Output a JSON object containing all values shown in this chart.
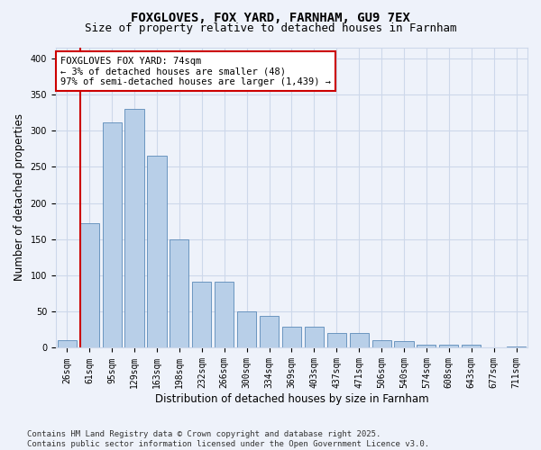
{
  "title1": "FOXGLOVES, FOX YARD, FARNHAM, GU9 7EX",
  "title2": "Size of property relative to detached houses in Farnham",
  "xlabel": "Distribution of detached houses by size in Farnham",
  "ylabel": "Number of detached properties",
  "categories": [
    "26sqm",
    "61sqm",
    "95sqm",
    "129sqm",
    "163sqm",
    "198sqm",
    "232sqm",
    "266sqm",
    "300sqm",
    "334sqm",
    "369sqm",
    "403sqm",
    "437sqm",
    "471sqm",
    "506sqm",
    "540sqm",
    "574sqm",
    "608sqm",
    "643sqm",
    "677sqm",
    "711sqm"
  ],
  "values": [
    11,
    172,
    311,
    330,
    265,
    150,
    91,
    91,
    50,
    44,
    29,
    29,
    21,
    20,
    11,
    9,
    4,
    4,
    4,
    1,
    2
  ],
  "bar_color": "#b8cfe8",
  "bar_edge_color": "#5b8ab8",
  "background_color": "#eef2fa",
  "grid_color": "#cdd8ea",
  "annotation_text": "FOXGLOVES FOX YARD: 74sqm\n← 3% of detached houses are smaller (48)\n97% of semi-detached houses are larger (1,439) →",
  "annotation_box_color": "#ffffff",
  "annotation_box_edge": "#cc0000",
  "vline_color": "#cc0000",
  "vline_x_index": 1,
  "ylim": [
    0,
    415
  ],
  "yticks": [
    0,
    50,
    100,
    150,
    200,
    250,
    300,
    350,
    400
  ],
  "footer": "Contains HM Land Registry data © Crown copyright and database right 2025.\nContains public sector information licensed under the Open Government Licence v3.0.",
  "title_fontsize": 10,
  "subtitle_fontsize": 9,
  "axis_label_fontsize": 8.5,
  "tick_fontsize": 7,
  "annotation_fontsize": 7.5,
  "footer_fontsize": 6.5
}
